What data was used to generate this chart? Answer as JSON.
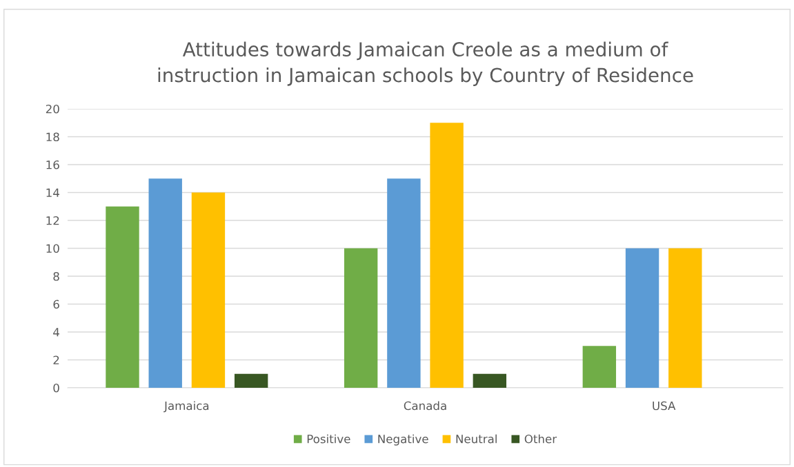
{
  "chart_data": {
    "type": "bar",
    "title": "Attitudes towards Jamaican Creole as a medium of\ninstruction in Jamaican schools by Country of Residence",
    "categories": [
      "Jamaica",
      "Canada",
      "USA"
    ],
    "series": [
      {
        "name": "Positive",
        "color": "#70ad47",
        "values": [
          13,
          10,
          3
        ]
      },
      {
        "name": "Negative",
        "color": "#5b9bd5",
        "values": [
          15,
          15,
          10
        ]
      },
      {
        "name": "Neutral",
        "color": "#ffc000",
        "values": [
          14,
          19,
          10
        ]
      },
      {
        "name": "Other",
        "color": "#385723",
        "values": [
          1,
          1,
          0
        ]
      }
    ],
    "ylim": [
      0,
      20
    ],
    "yticks": [
      0,
      2,
      4,
      6,
      8,
      10,
      12,
      14,
      16,
      18,
      20
    ],
    "grid": "y",
    "legend": "bottom"
  }
}
